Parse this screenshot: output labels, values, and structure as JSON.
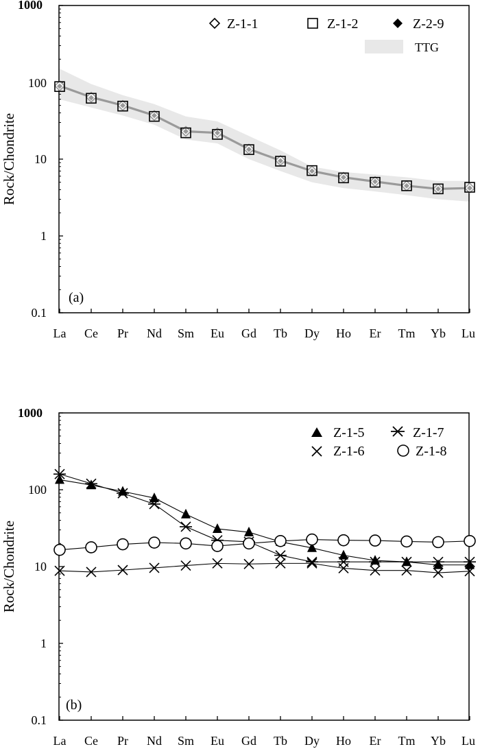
{
  "chart_data": [
    {
      "id": "a",
      "type": "line",
      "yscale": "log",
      "panel_label": "(a)",
      "ylabel": "Rock/Chondrite",
      "ylim": [
        0.1,
        1000
      ],
      "yticks": [
        "1000",
        "100",
        "10",
        "1",
        "0.1"
      ],
      "categories": [
        "La",
        "Ce",
        "Pr",
        "Nd",
        "Sm",
        "Eu",
        "Gd",
        "Tb",
        "Dy",
        "Ho",
        "Er",
        "Tm",
        "Yb",
        "Lu"
      ],
      "band": {
        "name": "TTG",
        "color": "#e8e8e8",
        "upper": [
          150,
          95,
          68,
          52,
          36,
          31,
          20,
          13,
          8,
          6.8,
          6.3,
          5.8,
          5.2,
          5.2
        ],
        "lower": [
          60,
          47,
          37,
          28,
          18,
          16,
          10,
          7,
          5,
          4.2,
          3.8,
          3.4,
          3.0,
          2.8
        ]
      },
      "series": [
        {
          "name": "Z-1-1",
          "marker": "diamond-open",
          "color": "#9a9a9a",
          "values": [
            90,
            64,
            50,
            37,
            23,
            22,
            13.5,
            9.6,
            7.0,
            5.8,
            5.1,
            4.5,
            4.1,
            4.2
          ]
        },
        {
          "name": "Z-1-2",
          "marker": "square-open",
          "color": "#9a9a9a",
          "values": [
            88,
            62,
            49,
            36,
            22,
            21,
            13.3,
            9.4,
            7.1,
            5.7,
            5.0,
            4.5,
            4.1,
            4.3
          ]
        },
        {
          "name": "Z-2-9",
          "marker": "diamond-filled",
          "color": "#9a9a9a",
          "values": [
            89,
            63,
            50,
            37,
            23,
            22,
            13.4,
            9.5,
            7.0,
            5.8,
            5.1,
            4.5,
            4.1,
            4.2
          ]
        }
      ],
      "legend": [
        "Z-1-1",
        "Z-1-2",
        "Z-2-9",
        "TTG"
      ]
    },
    {
      "id": "b",
      "type": "line",
      "yscale": "log",
      "panel_label": "(b)",
      "ylabel": "Rock/Chondrite",
      "ylim": [
        0.1,
        1000
      ],
      "yticks": [
        "1000",
        "100",
        "10",
        "1",
        "0.1"
      ],
      "categories": [
        "La",
        "Ce",
        "Pr",
        "Nd",
        "Sm",
        "Eu",
        "Gd",
        "Tb",
        "Dy",
        "Ho",
        "Er",
        "Tm",
        "Yb",
        "Lu"
      ],
      "series": [
        {
          "name": "Z-1-5",
          "marker": "triangle-filled",
          "color": "#000000",
          "values": [
            135,
            115,
            95,
            78,
            48,
            31,
            28,
            21,
            17.5,
            14,
            12,
            11.5,
            10.5,
            10.5
          ]
        },
        {
          "name": "Z-1-7",
          "marker": "asterisk",
          "color": "#000000",
          "values": [
            160,
            120,
            90,
            65,
            33,
            22,
            21,
            14,
            11.5,
            11.5,
            11.5,
            11.5,
            11.5,
            11.5
          ]
        },
        {
          "name": "Z-1-6",
          "marker": "x",
          "color": "#000000",
          "values": [
            8.8,
            8.5,
            9.0,
            9.6,
            10.3,
            11,
            10.8,
            11,
            11,
            9.5,
            8.9,
            8.9,
            8.3,
            8.7
          ]
        },
        {
          "name": "Z-1-8",
          "marker": "circle-open",
          "color": "#000000",
          "values": [
            16.5,
            17.8,
            19.5,
            20.5,
            20,
            18.5,
            20,
            21.5,
            22.5,
            22,
            21.8,
            21.2,
            20.8,
            21.5
          ]
        }
      ],
      "legend": [
        "Z-1-5",
        "Z-1-7",
        "Z-1-6",
        "Z-1-8"
      ]
    }
  ]
}
